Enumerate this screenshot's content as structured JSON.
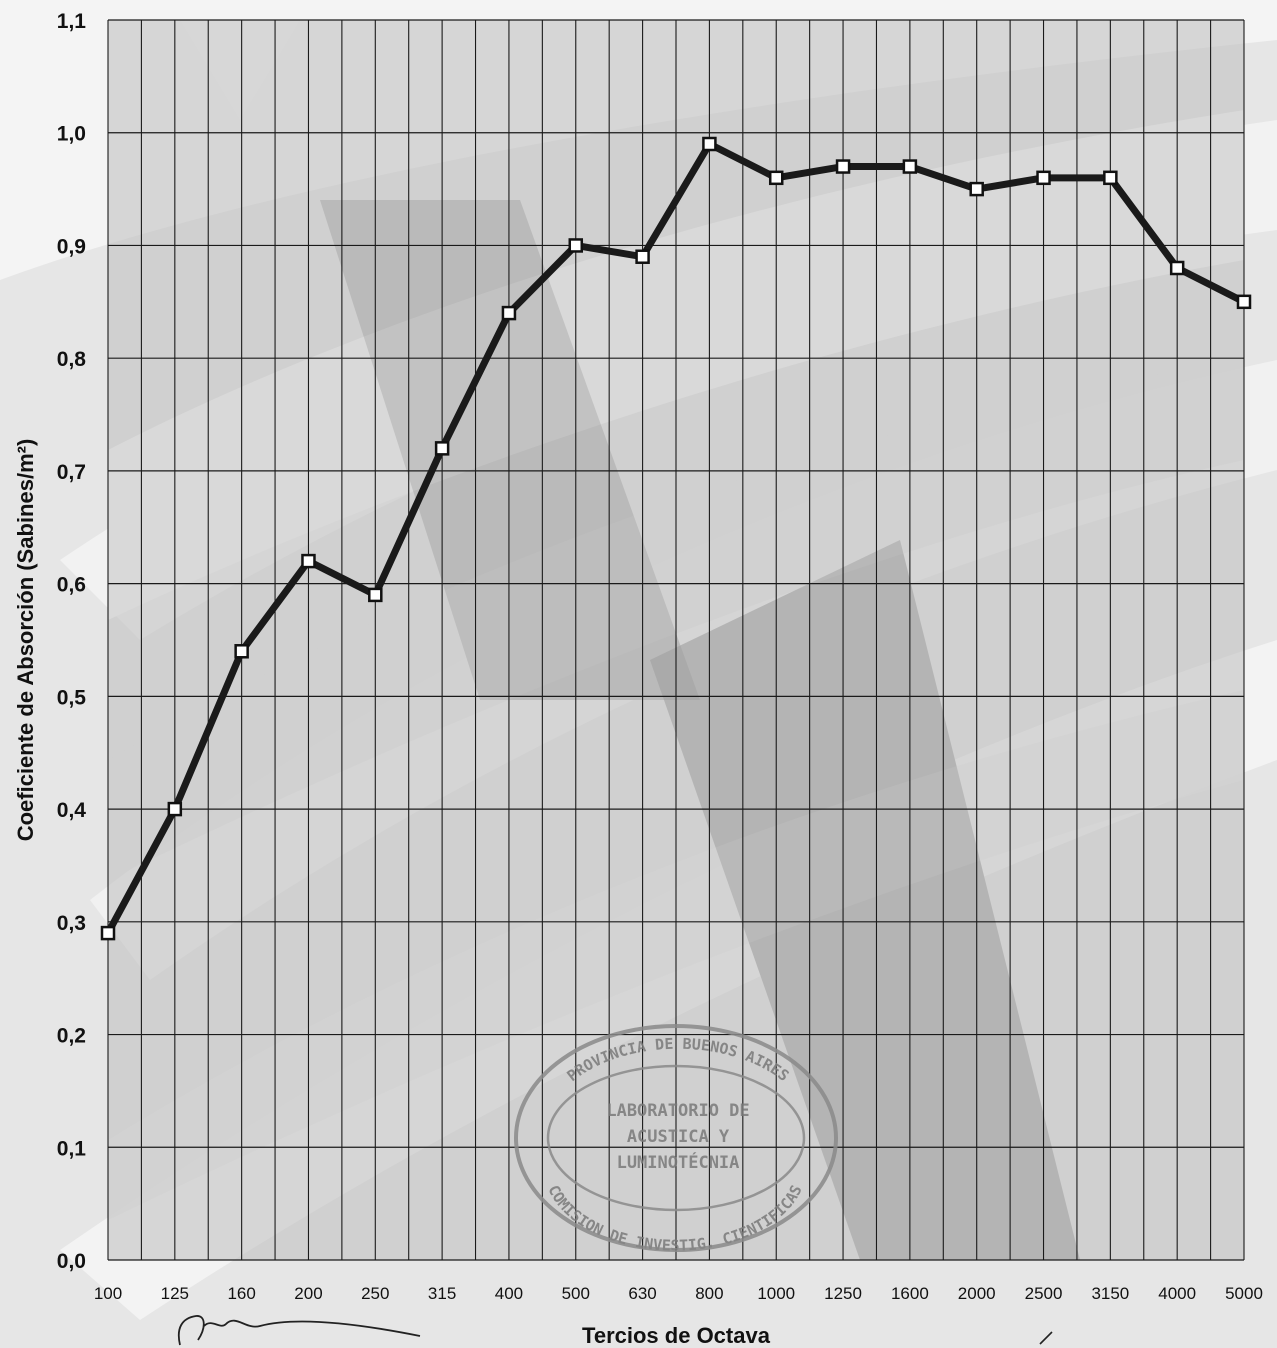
{
  "chart_data": {
    "type": "line",
    "categories": [
      "100",
      "125",
      "160",
      "200",
      "250",
      "315",
      "400",
      "500",
      "630",
      "800",
      "1000",
      "1250",
      "1600",
      "2000",
      "2500",
      "3150",
      "4000",
      "5000"
    ],
    "series": [
      {
        "values": [
          0.29,
          0.4,
          0.54,
          0.62,
          0.59,
          0.72,
          0.84,
          0.9,
          0.89,
          0.99,
          0.96,
          0.97,
          0.97,
          0.95,
          0.96,
          0.96,
          0.88,
          0.85
        ]
      }
    ],
    "xlabel": "Tercios de Octava",
    "ylabel": "Coeficiente de Absorción (Sabines/m²)",
    "ylim": [
      0.0,
      1.1
    ],
    "yticks": [
      "0,0",
      "0,1",
      "0,2",
      "0,3",
      "0,4",
      "0,5",
      "0,6",
      "0,7",
      "0,8",
      "0,9",
      "1,0",
      "1,1"
    ],
    "grid": true,
    "marker": "square",
    "line_color": "#1a1a1a"
  },
  "stamp": {
    "top_arc": "PROVINCIA DE BUENOS AIRES",
    "line1": "LABORATORIO DE",
    "line2": "ACUSTICA Y",
    "line3": "LUMINOTÉCNIA",
    "bottom_arc": "COMISION DE INVESTIG. CIENTIFICAS"
  }
}
